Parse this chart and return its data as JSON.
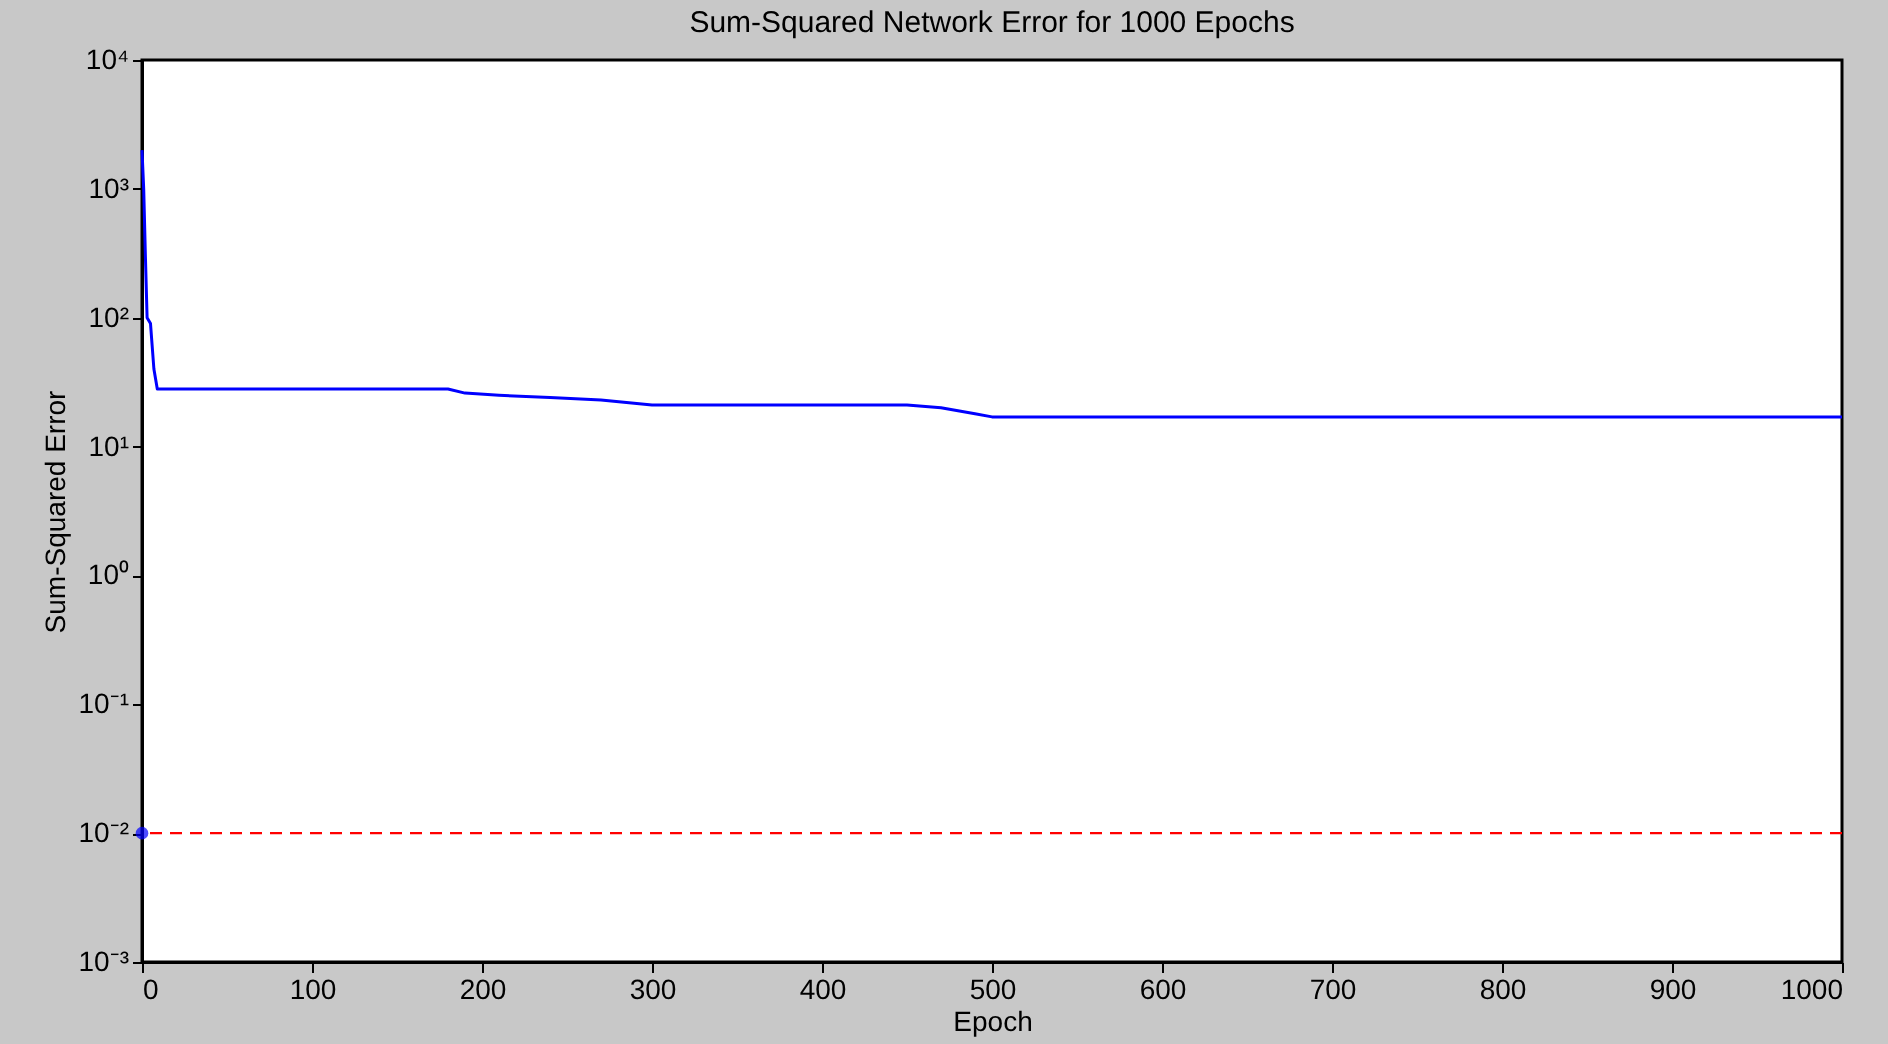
{
  "chart_data": {
    "type": "line",
    "title": "Sum-Squared Network Error for 1000 Epochs",
    "xlabel": "Epoch",
    "ylabel": "Sum-Squared Error",
    "log": "y",
    "xlim": [
      0,
      1000
    ],
    "xticks": [
      0,
      100,
      200,
      300,
      400,
      500,
      600,
      700,
      800,
      900,
      1000
    ],
    "ylim": [
      0.001,
      10000
    ],
    "yticks": [
      {
        "value": 0.001,
        "label": "10⁻³"
      },
      {
        "value": 0.01,
        "label": "10⁻²"
      },
      {
        "value": 0.1,
        "label": "10⁻¹"
      },
      {
        "value": 1,
        "label": "10⁰"
      },
      {
        "value": 10,
        "label": "10¹"
      },
      {
        "value": 100,
        "label": "10²"
      },
      {
        "value": 1000,
        "label": "10³"
      },
      {
        "value": 10000,
        "label": "10⁴"
      }
    ],
    "grid": false,
    "series": [
      {
        "color": "#0000ff",
        "x": [
          0,
          1,
          2,
          3,
          5,
          7,
          9,
          180,
          190,
          210,
          240,
          270,
          285,
          300,
          450,
          470,
          490,
          500,
          1000
        ],
        "values": [
          2000,
          1000,
          300,
          100,
          90,
          40,
          28,
          28,
          26,
          25,
          24,
          23,
          22,
          21,
          21,
          20,
          18,
          17,
          17
        ]
      },
      {
        "type": "scatter",
        "color": "#0000ff",
        "marker": "circle",
        "x": [
          0
        ],
        "values": [
          0.01
        ]
      }
    ],
    "ref_lines": [
      {
        "axis": "y",
        "value": 0.01,
        "color": "#ff0000",
        "line_style": "dashed"
      }
    ]
  }
}
